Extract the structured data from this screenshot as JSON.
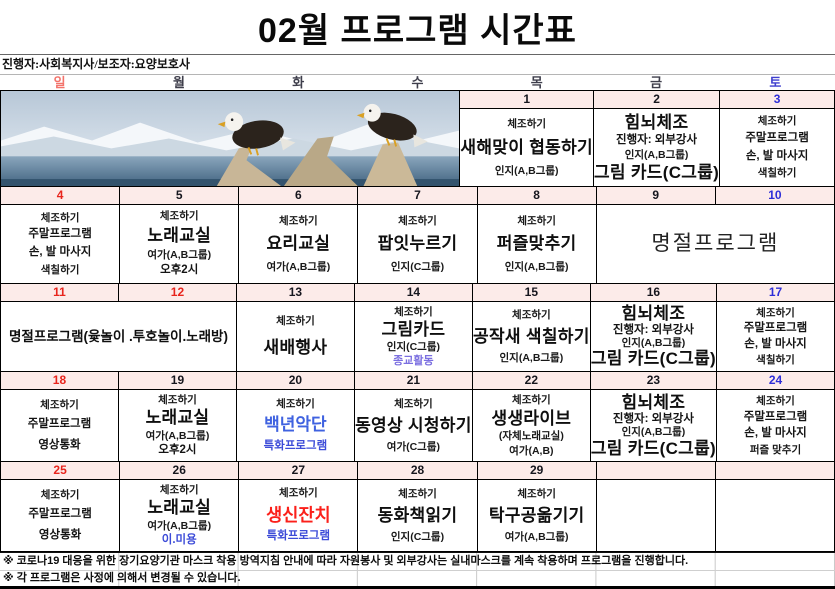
{
  "title": "02월 프로그램 시간표",
  "staff_note": "진행자:사회복지사/보조자:요양보호사",
  "day_headers": [
    "일",
    "월",
    "화",
    "수",
    "목",
    "금",
    "토"
  ],
  "colors": {
    "pink": "#fcebe9",
    "sun": "#e8251d",
    "sat": "#2e2ed8",
    "wd": "#16161e",
    "hsun": "#f3736b",
    "hsat": "#4040cf",
    "hwd": "#3e3e4b",
    "blue": "#3d4cd8",
    "purple": "#7b6fe0",
    "bigblue": "#3f62e0",
    "bigred": "#fb201a"
  },
  "photo": {
    "name": "eagles-winter-photo"
  },
  "weeks": [
    {
      "dates": [
        null,
        null,
        null,
        null,
        {
          "n": "1",
          "c": "wd"
        },
        {
          "n": "2",
          "c": "wd"
        },
        {
          "n": "3",
          "c": "sat"
        }
      ],
      "cells": [
        {
          "type": "photo",
          "span": 4,
          "name": "eagles-winter-photo"
        },
        {
          "name": "day-1-cell",
          "lines": [
            [
              "sm",
              "체조하기"
            ],
            [
              "big",
              "새해맞이 협동하기"
            ],
            [
              "sm",
              "인지(A,B그룹)"
            ]
          ]
        },
        {
          "name": "day-2-cell",
          "lines": [
            [
              "big",
              "힘뇌체조"
            ],
            [
              "smb",
              "진행자: 외부강사"
            ],
            [
              "sm",
              "인지(A,B그룹)"
            ],
            [
              "big",
              "그림 카드(C그룹)"
            ]
          ]
        },
        {
          "name": "day-3-cell",
          "lines": [
            [
              "sm",
              "체조하기"
            ],
            [
              "smb",
              "주말프로그램"
            ],
            [
              "smb",
              "손, 발 마사지"
            ],
            [
              "sm",
              "색칠하기"
            ]
          ]
        }
      ]
    },
    {
      "dates": [
        {
          "n": "4",
          "c": "sun"
        },
        {
          "n": "5",
          "c": "wd"
        },
        {
          "n": "6",
          "c": "wd"
        },
        {
          "n": "7",
          "c": "wd"
        },
        {
          "n": "8",
          "c": "wd"
        },
        {
          "n": "9",
          "c": "wd"
        },
        {
          "n": "10",
          "c": "sat"
        }
      ],
      "cells": [
        {
          "name": "day-4-cell",
          "lines": [
            [
              "sm",
              "체조하기"
            ],
            [
              "smb",
              "주말프로그램"
            ],
            [
              "smb",
              "손, 발 마사지"
            ],
            [
              "sm",
              "색칠하기"
            ]
          ]
        },
        {
          "name": "day-5-cell",
          "lines": [
            [
              "sm",
              "체조하기"
            ],
            [
              "big",
              "노래교실"
            ],
            [
              "sm",
              "여가(A,B그룹)"
            ],
            [
              "smb",
              "오후2시"
            ]
          ]
        },
        {
          "name": "day-6-cell",
          "lines": [
            [
              "sm",
              "체조하기"
            ],
            [
              "big",
              "요리교실"
            ],
            [
              "sm",
              "여가(A,B그룹)"
            ]
          ]
        },
        {
          "name": "day-7-cell",
          "lines": [
            [
              "sm",
              "체조하기"
            ],
            [
              "big",
              "팝잇누르기"
            ],
            [
              "sm",
              "인지(C그룹)"
            ]
          ]
        },
        {
          "name": "day-8-cell",
          "lines": [
            [
              "sm",
              "체조하기"
            ],
            [
              "big",
              "퍼즐맞추기"
            ],
            [
              "sm",
              "인지(A,B그룹)"
            ]
          ]
        },
        {
          "name": "holiday-program-banner",
          "span": 2,
          "lines": [
            [
              "xl",
              "명절프로그램"
            ]
          ]
        }
      ]
    },
    {
      "dates": [
        {
          "n": "11",
          "c": "sun"
        },
        {
          "n": "12",
          "c": "sun"
        },
        {
          "n": "13",
          "c": "wd"
        },
        {
          "n": "14",
          "c": "wd"
        },
        {
          "n": "15",
          "c": "wd"
        },
        {
          "n": "16",
          "c": "wd"
        },
        {
          "n": "17",
          "c": "sat"
        }
      ],
      "cells": [
        {
          "name": "holiday-program-detail",
          "span": 2,
          "lines": [
            [
              "mb",
              "명절프로그램(윷놀이    .투호놀이.노래방)"
            ]
          ]
        },
        {
          "name": "day-13-cell",
          "lines": [
            [
              "sm",
              "체조하기"
            ],
            [
              "big",
              "새배행사"
            ]
          ]
        },
        {
          "name": "day-14-cell",
          "lines": [
            [
              "sm",
              "체조하기"
            ],
            [
              "big",
              "그림카드"
            ],
            [
              "sm",
              "인지(C그룹)"
            ],
            [
              "purple",
              "종교활동"
            ]
          ]
        },
        {
          "name": "day-15-cell",
          "lines": [
            [
              "sm",
              "체조하기"
            ],
            [
              "big",
              "공작새 색칠하기"
            ],
            [
              "sm",
              "인지(A,B그룹)"
            ]
          ]
        },
        {
          "name": "day-16-cell",
          "lines": [
            [
              "big",
              "힘뇌체조"
            ],
            [
              "smb",
              "진행자: 외부강사"
            ],
            [
              "sm",
              "인지(A,B그룹)"
            ],
            [
              "big",
              "그림 카드(C그룹)"
            ]
          ]
        },
        {
          "name": "day-17-cell",
          "lines": [
            [
              "sm",
              "체조하기"
            ],
            [
              "smb",
              "주말프로그램"
            ],
            [
              "smb",
              "손, 발 마사지"
            ],
            [
              "sm",
              "색칠하기"
            ]
          ]
        }
      ]
    },
    {
      "dates": [
        {
          "n": "18",
          "c": "sun"
        },
        {
          "n": "19",
          "c": "wd"
        },
        {
          "n": "20",
          "c": "wd"
        },
        {
          "n": "21",
          "c": "wd"
        },
        {
          "n": "22",
          "c": "wd"
        },
        {
          "n": "23",
          "c": "wd"
        },
        {
          "n": "24",
          "c": "sat"
        }
      ],
      "cells": [
        {
          "name": "day-18-cell",
          "lines": [
            [
              "sm",
              "체조하기"
            ],
            [
              "smb",
              "주말프로그램"
            ],
            [
              "smb",
              "영상통화"
            ]
          ]
        },
        {
          "name": "day-19-cell",
          "lines": [
            [
              "sm",
              "체조하기"
            ],
            [
              "big",
              "노래교실"
            ],
            [
              "sm",
              "여가(A,B그룹)"
            ],
            [
              "smb",
              "오후2시"
            ]
          ]
        },
        {
          "name": "day-20-cell",
          "lines": [
            [
              "sm",
              "체조하기"
            ],
            [
              "bigblue",
              "백년악단"
            ],
            [
              "blue",
              "특화프로그램"
            ]
          ]
        },
        {
          "name": "day-21-cell",
          "lines": [
            [
              "sm",
              "체조하기"
            ],
            [
              "big",
              "동영상 시청하기"
            ],
            [
              "sm",
              "여가(C그룹)"
            ]
          ]
        },
        {
          "name": "day-22-cell",
          "lines": [
            [
              "sm",
              "체조하기"
            ],
            [
              "big",
              "생생라이브"
            ],
            [
              "sm",
              "(자체노래교실)"
            ],
            [
              "sm",
              "여가(A,B)"
            ]
          ]
        },
        {
          "name": "day-23-cell",
          "lines": [
            [
              "big",
              "힘뇌체조"
            ],
            [
              "smb",
              "진행자: 외부강사"
            ],
            [
              "sm",
              "인지(A,B그룹)"
            ],
            [
              "big",
              "그림 카드(C그룹)"
            ]
          ]
        },
        {
          "name": "day-24-cell",
          "lines": [
            [
              "sm",
              "체조하기"
            ],
            [
              "smb",
              "주말프로그램"
            ],
            [
              "smb",
              "손, 발 마사지"
            ],
            [
              "sm",
              "퍼즐 맞추기"
            ]
          ]
        }
      ]
    },
    {
      "dates": [
        {
          "n": "25",
          "c": "sun"
        },
        {
          "n": "26",
          "c": "wd"
        },
        {
          "n": "27",
          "c": "wd"
        },
        {
          "n": "28",
          "c": "wd"
        },
        {
          "n": "29",
          "c": "wd"
        },
        {
          "n": "",
          "c": "wd"
        },
        {
          "n": "",
          "c": "wd"
        }
      ],
      "cells": [
        {
          "name": "day-25-cell",
          "lines": [
            [
              "sm",
              "체조하기"
            ],
            [
              "smb",
              "주말프로그램"
            ],
            [
              "smb",
              "영상통화"
            ]
          ]
        },
        {
          "name": "day-26-cell",
          "lines": [
            [
              "sm",
              "체조하기"
            ],
            [
              "big",
              "노래교실"
            ],
            [
              "sm",
              "여가(A,B그룹)"
            ],
            [
              "blue",
              "이.미용"
            ]
          ]
        },
        {
          "name": "day-27-cell",
          "lines": [
            [
              "sm",
              "체조하기"
            ],
            [
              "bigred",
              "생신잔치"
            ],
            [
              "blue",
              "특화프로그램"
            ]
          ]
        },
        {
          "name": "day-28-cell",
          "lines": [
            [
              "sm",
              "체조하기"
            ],
            [
              "big",
              "동화책읽기"
            ],
            [
              "sm",
              "인지(C그룹)"
            ]
          ]
        },
        {
          "name": "day-29-cell",
          "lines": [
            [
              "sm",
              "체조하기"
            ],
            [
              "big",
              "탁구공옮기기"
            ],
            [
              "sm",
              "여가(A,B그룹)"
            ]
          ]
        },
        {
          "name": "empty-cell",
          "lines": []
        },
        {
          "name": "empty-cell",
          "lines": []
        }
      ]
    }
  ],
  "footnotes": [
    "※ 코로나19 대응을 위한 장기요양기관 마스크 착용 방역지침 안내에 따라 자원봉사 및 외부강사는 실내마스크를 계속 착용하며 프로그램을 진행합니다.",
    "※ 각 프로그램은 사정에 의해서 변경될 수 있습니다."
  ]
}
